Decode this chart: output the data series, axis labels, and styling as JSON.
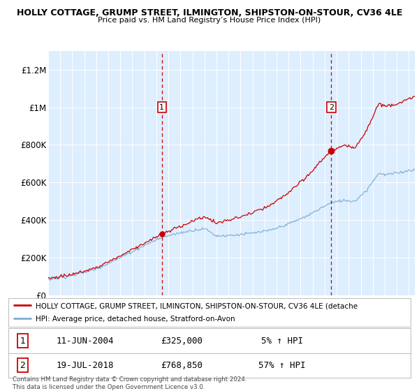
{
  "title": "HOLLY COTTAGE, GRUMP STREET, ILMINGTON, SHIPSTON-ON-STOUR, CV36 4LE",
  "subtitle": "Price paid vs. HM Land Registry’s House Price Index (HPI)",
  "bg_color": "#ddeeff",
  "hpi_color": "#7aadd4",
  "price_color": "#cc0000",
  "ylabel_ticks": [
    "£0",
    "£200K",
    "£400K",
    "£600K",
    "£800K",
    "£1M",
    "£1.2M"
  ],
  "ytick_values": [
    0,
    200000,
    400000,
    600000,
    800000,
    1000000,
    1200000
  ],
  "ylim": [
    0,
    1300000
  ],
  "sale1_date": "11-JUN-2004",
  "sale1_price": 325000,
  "sale1_note": "5% ↑ HPI",
  "sale2_date": "19-JUL-2018",
  "sale2_price": 768850,
  "sale2_note": "57% ↑ HPI",
  "legend_red": "HOLLY COTTAGE, GRUMP STREET, ILMINGTON, SHIPSTON-ON-STOUR, CV36 4LE (detache",
  "legend_blue": "HPI: Average price, detached house, Stratford-on-Avon",
  "footnote": "Contains HM Land Registry data © Crown copyright and database right 2024.\nThis data is licensed under the Open Government Licence v3.0.",
  "xstart": 1995.0,
  "xend": 2025.5,
  "sale1_x": 2004.458,
  "sale2_x": 2018.542
}
